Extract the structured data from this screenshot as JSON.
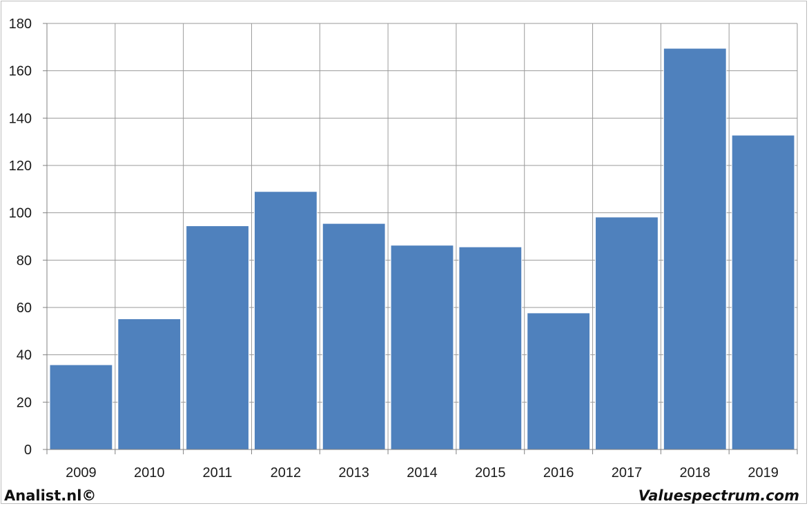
{
  "chart_data": {
    "type": "bar",
    "categories": [
      "2009",
      "2010",
      "2011",
      "2012",
      "2013",
      "2014",
      "2015",
      "2016",
      "2017",
      "2018",
      "2019"
    ],
    "values": [
      35.8,
      55.2,
      94.5,
      109.0,
      95.5,
      86.3,
      85.6,
      57.7,
      98.2,
      169.5,
      132.8
    ],
    "title": "",
    "xlabel": "",
    "ylabel": "",
    "ylim": [
      0,
      180
    ],
    "yticks": [
      0,
      20,
      40,
      60,
      80,
      100,
      120,
      140,
      160,
      180
    ],
    "grid": true,
    "legend": "none",
    "bar_color": "#4f81bd"
  },
  "footer": {
    "left": "Analist.nl©",
    "right": "Valuespectrum.com"
  }
}
